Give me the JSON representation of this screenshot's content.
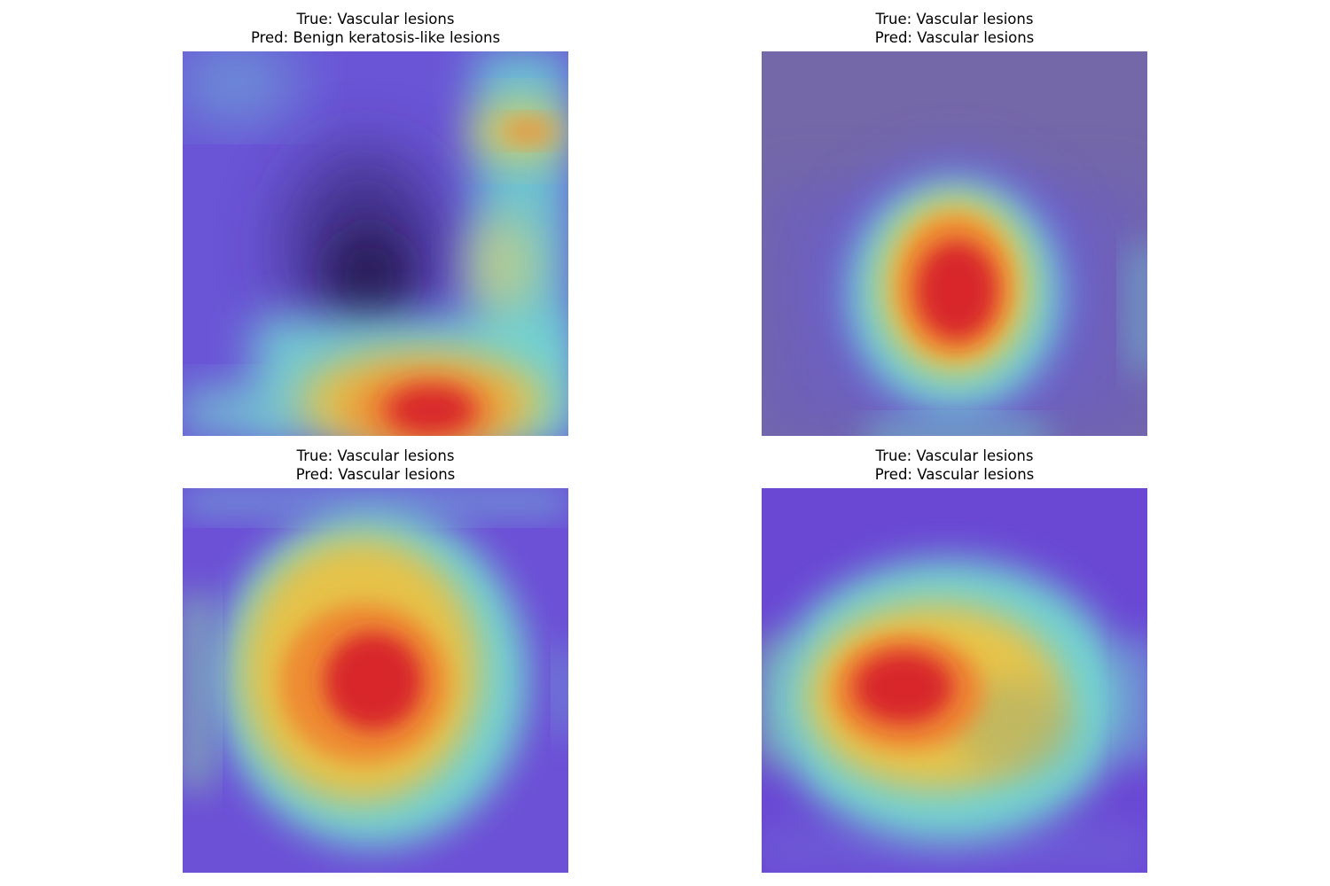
{
  "colormap": {
    "cold": "#6a4fd8",
    "cyan": "#6fd6d8",
    "yellow": "#e8c84a",
    "orange": "#ee8a2e",
    "red": "#d8282a"
  },
  "panels": [
    {
      "true_label": "True: Vascular lesions",
      "pred_label": "Pred: Benign keratosis-like lesions"
    },
    {
      "true_label": "True: Vascular lesions",
      "pred_label": "Pred: Vascular lesions"
    },
    {
      "true_label": "True: Vascular lesions",
      "pred_label": "Pred: Vascular lesions"
    },
    {
      "true_label": "True: Vascular lesions",
      "pred_label": "Pred: Vascular lesions"
    }
  ]
}
